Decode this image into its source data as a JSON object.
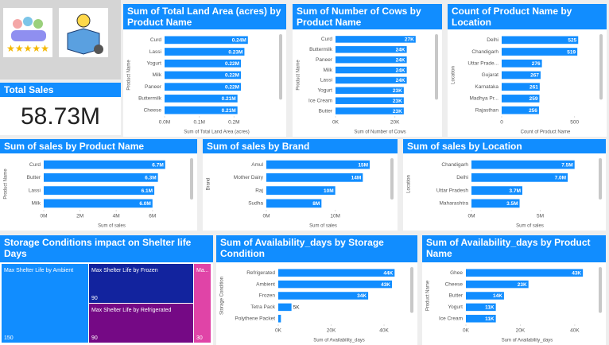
{
  "chart_data": [
    {
      "type": "card",
      "title": "Total Sales",
      "values": [
        58730000
      ],
      "value_labels": [
        "58.73M"
      ]
    },
    {
      "type": "bar",
      "title": "Sum of Total Land Area (acres) by Product Name",
      "x_label": "Sum of Total Land Area (acres)",
      "y_label": "Product Name",
      "color": "#118dff",
      "categories": [
        "Curd",
        "Lassi",
        "Yogurt",
        "Milk",
        "Paneer",
        "Buttermilk",
        "Cheese"
      ],
      "values": [
        240000,
        230000,
        220000,
        220000,
        220000,
        210000,
        210000
      ],
      "value_labels": [
        "0.24M",
        "0.23M",
        "0.22M",
        "0.22M",
        "0.22M",
        "0.21M",
        "0.21M"
      ],
      "xlim": [
        0,
        300000
      ],
      "xticks": [
        {
          "value": 0,
          "label": "0.0M"
        },
        {
          "value": 100000,
          "label": "0.1M"
        },
        {
          "value": 200000,
          "label": "0.2M"
        }
      ]
    },
    {
      "type": "bar",
      "title": "Sum of Number of Cows by Product Name",
      "x_label": "Sum of Number of Cows",
      "y_label": "Product Name",
      "color": "#118dff",
      "categories": [
        "Curd",
        "Buttermilk",
        "Paneer",
        "Milk",
        "Lassi",
        "Yogurt",
        "Ice Cream",
        "Butter"
      ],
      "values": [
        27000,
        24000,
        24000,
        24000,
        24000,
        23000,
        23000,
        23000
      ],
      "value_labels": [
        "27K",
        "24K",
        "24K",
        "24K",
        "24K",
        "23K",
        "23K",
        "23K"
      ],
      "xlim": [
        0,
        30000
      ],
      "xticks": [
        {
          "value": 0,
          "label": "0K"
        },
        {
          "value": 20000,
          "label": "20K"
        }
      ]
    },
    {
      "type": "bar",
      "title": "Count of Product Name by Location",
      "x_label": "Count of Product Name",
      "y_label": "Location",
      "color": "#118dff",
      "categories": [
        "Delhi",
        "Chandigarh",
        "Uttar Prade...",
        "Gujarat",
        "Karnataka",
        "Madhya Pr...",
        "Rajasthan"
      ],
      "values": [
        525,
        519,
        276,
        267,
        261,
        259,
        256
      ],
      "xlim": [
        0,
        600
      ],
      "xticks": [
        0,
        500
      ],
      "value_labels_inside": true
    },
    {
      "type": "bar",
      "title": "Sum of sales by Product Name",
      "x_label": "Sum of sales",
      "y_label": "Product Name",
      "color": "#118dff",
      "categories": [
        "Curd",
        "Butter",
        "Lassi",
        "Milk"
      ],
      "values": [
        6700000,
        6300000,
        6100000,
        6000000
      ],
      "value_labels": [
        "6.7M",
        "6.3M",
        "6.1M",
        "6.0M"
      ],
      "xlim": [
        0,
        7500000
      ],
      "xticks": [
        {
          "value": 0,
          "label": "0M"
        },
        {
          "value": 2000000,
          "label": "2M"
        },
        {
          "value": 4000000,
          "label": "4M"
        },
        {
          "value": 6000000,
          "label": "6M"
        }
      ]
    },
    {
      "type": "bar",
      "title": "Sum of sales by Brand",
      "x_label": "Sum of sales",
      "y_label": "Brand",
      "color": "#118dff",
      "categories": [
        "Amul",
        "Mother Dairy",
        "Raj",
        "Sudha"
      ],
      "values": [
        15000000,
        14000000,
        10000000,
        8000000
      ],
      "value_labels": [
        "15M",
        "14M",
        "10M",
        "8M"
      ],
      "xlim": [
        0,
        16500000
      ],
      "xticks": [
        {
          "value": 0,
          "label": "0M"
        },
        {
          "value": 10000000,
          "label": "10M"
        }
      ]
    },
    {
      "type": "bar",
      "title": "Sum of sales by Location",
      "x_label": "Sum of sales",
      "y_label": "Location",
      "color": "#118dff",
      "categories": [
        "Chandigarh",
        "Delhi",
        "Uttar Pradesh",
        "Maharashtra"
      ],
      "values": [
        7500000,
        7000000,
        3700000,
        3500000
      ],
      "value_labels": [
        "7.5M",
        "7.0M",
        "3.7M",
        "3.5M"
      ],
      "xlim": [
        0,
        8500000
      ],
      "xticks": [
        {
          "value": 0,
          "label": "0M"
        },
        {
          "value": 5000000,
          "label": "5M"
        }
      ]
    },
    {
      "type": "treemap",
      "title": "Storage Conditions impact on Shelter life Days",
      "categories": [
        "Max Shelter Life by Ambient",
        "Max Shelter Life by Frozen",
        "Max Shelter Life by Refrigerated",
        "Ma..."
      ],
      "values": [
        150,
        90,
        90,
        30
      ],
      "colors": [
        "#118dff",
        "#12239e",
        "#750985",
        "#e044a7"
      ]
    },
    {
      "type": "bar",
      "title": "Sum of Availability_days by Storage Condition",
      "x_label": "Sum of Availability_days",
      "y_label": "Storage Condition",
      "color": "#118dff",
      "categories": [
        "Refrigerated",
        "Ambient",
        "Frozen",
        "Tetra Pack",
        "Polythene Packet"
      ],
      "values": [
        44000,
        43000,
        34000,
        5000,
        1000
      ],
      "value_labels": [
        "44K",
        "43K",
        "34K",
        "5K",
        null
      ],
      "xlim": [
        0,
        46000
      ],
      "xticks": [
        {
          "value": 0,
          "label": "0K"
        },
        {
          "value": 20000,
          "label": "20K"
        },
        {
          "value": 40000,
          "label": "40K"
        }
      ]
    },
    {
      "type": "bar",
      "title": "Sum of Availability_days by Product Name",
      "x_label": "Sum of Availability_days",
      "y_label": "Product Name",
      "color": "#118dff",
      "categories": [
        "Ghee",
        "Cheese",
        "Butter",
        "Yogurt",
        "Ice Cream"
      ],
      "values": [
        43000,
        23000,
        14000,
        11000,
        11000
      ],
      "value_labels": [
        "43K",
        "23K",
        "14K",
        "11K",
        "11K"
      ],
      "xlim": [
        0,
        45000
      ],
      "xticks": [
        {
          "value": 0,
          "label": "0K"
        },
        {
          "value": 20000,
          "label": "20K"
        },
        {
          "value": 40000,
          "label": "40K"
        }
      ]
    }
  ]
}
